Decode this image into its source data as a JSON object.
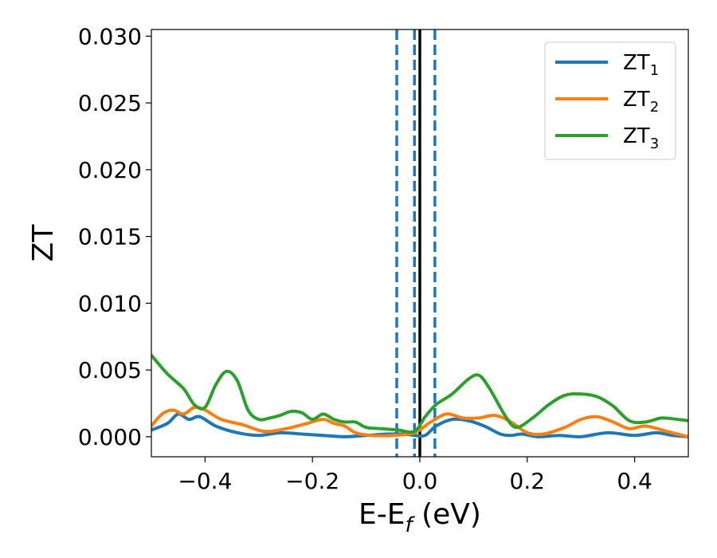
{
  "chart_data": {
    "type": "line",
    "xlabel_main": "E-E",
    "xlabel_sub": "f",
    "xlabel_unit": " (eV)",
    "ylabel": "ZT",
    "xlim": [
      -0.5,
      0.5
    ],
    "ylim": [
      -0.0015,
      0.0305
    ],
    "x_ticks": [
      -0.4,
      -0.2,
      0.0,
      0.2,
      0.4
    ],
    "x_tick_labels": [
      "−0.4",
      "−0.2",
      "0.0",
      "0.2",
      "0.4"
    ],
    "y_ticks": [
      0.0,
      0.005,
      0.01,
      0.015,
      0.02,
      0.025,
      0.03
    ],
    "y_tick_labels": [
      "0.000",
      "0.005",
      "0.010",
      "0.015",
      "0.020",
      "0.025",
      "0.030"
    ],
    "grid": false,
    "legend_position": "top-right",
    "vlines": [
      {
        "x": -0.043,
        "style": "dashed",
        "color": "#1f77b4"
      },
      {
        "x": -0.01,
        "style": "dashed",
        "color": "#1f77b4"
      },
      {
        "x": 0.0,
        "style": "solid",
        "color": "#000000"
      },
      {
        "x": 0.028,
        "style": "dashed",
        "color": "#1f77b4"
      }
    ],
    "series": [
      {
        "name_main": "ZT",
        "name_sub": "1",
        "color": "#1f77b4",
        "x": [
          -0.5,
          -0.47,
          -0.45,
          -0.43,
          -0.41,
          -0.38,
          -0.34,
          -0.3,
          -0.26,
          -0.22,
          -0.18,
          -0.14,
          -0.1,
          -0.06,
          -0.03,
          -0.01,
          0.01,
          0.03,
          0.06,
          0.09,
          0.12,
          0.15,
          0.17,
          0.19,
          0.22,
          0.26,
          0.3,
          0.35,
          0.4,
          0.44,
          0.47,
          0.5
        ],
        "y": [
          0.0005,
          0.001,
          0.0017,
          0.0013,
          0.0015,
          0.0008,
          0.0003,
          0.0001,
          0.0003,
          0.0002,
          0.0001,
          0.0,
          0.0001,
          0.0002,
          0.0002,
          0.0001,
          0.0001,
          0.0008,
          0.0013,
          0.0012,
          0.0008,
          0.0002,
          0.0001,
          0.0002,
          0.0,
          0.0001,
          0.0,
          0.0003,
          0.0001,
          0.0003,
          0.0001,
          0.0
        ]
      },
      {
        "name_main": "ZT",
        "name_sub": "2",
        "color": "#ff7f0e",
        "x": [
          -0.5,
          -0.48,
          -0.46,
          -0.44,
          -0.42,
          -0.4,
          -0.37,
          -0.33,
          -0.29,
          -0.25,
          -0.21,
          -0.18,
          -0.16,
          -0.14,
          -0.12,
          -0.09,
          -0.05,
          -0.01,
          0.02,
          0.05,
          0.08,
          0.11,
          0.14,
          0.17,
          0.2,
          0.23,
          0.27,
          0.3,
          0.33,
          0.36,
          0.39,
          0.42,
          0.46,
          0.5
        ],
        "y": [
          0.0008,
          0.0017,
          0.002,
          0.0017,
          0.0022,
          0.002,
          0.0013,
          0.0009,
          0.0004,
          0.0006,
          0.001,
          0.0013,
          0.001,
          0.0008,
          0.0003,
          0.0001,
          0.0001,
          0.0003,
          0.0011,
          0.0017,
          0.0014,
          0.0014,
          0.0016,
          0.0011,
          0.0003,
          0.0002,
          0.0007,
          0.0013,
          0.0015,
          0.0011,
          0.0006,
          0.0008,
          0.0004,
          0.0
        ]
      },
      {
        "name_main": "ZT",
        "name_sub": "3",
        "color": "#2ca02c",
        "x": [
          -0.5,
          -0.47,
          -0.44,
          -0.42,
          -0.4,
          -0.38,
          -0.36,
          -0.34,
          -0.32,
          -0.3,
          -0.28,
          -0.26,
          -0.24,
          -0.22,
          -0.2,
          -0.18,
          -0.16,
          -0.14,
          -0.12,
          -0.1,
          -0.07,
          -0.04,
          -0.01,
          0.01,
          0.03,
          0.06,
          0.09,
          0.11,
          0.13,
          0.16,
          0.18,
          0.21,
          0.24,
          0.27,
          0.3,
          0.33,
          0.36,
          0.39,
          0.42,
          0.45,
          0.48,
          0.5
        ],
        "y": [
          0.0061,
          0.0047,
          0.0036,
          0.0024,
          0.0022,
          0.0039,
          0.0049,
          0.0042,
          0.002,
          0.0013,
          0.0014,
          0.0016,
          0.0019,
          0.0018,
          0.0013,
          0.0017,
          0.0013,
          0.0011,
          0.0011,
          0.0007,
          0.0006,
          0.0005,
          0.0004,
          0.0015,
          0.0024,
          0.0032,
          0.0043,
          0.0046,
          0.0036,
          0.0015,
          0.0007,
          0.0014,
          0.0024,
          0.0031,
          0.0032,
          0.003,
          0.0023,
          0.0012,
          0.0011,
          0.0014,
          0.0013,
          0.0012
        ]
      }
    ]
  }
}
